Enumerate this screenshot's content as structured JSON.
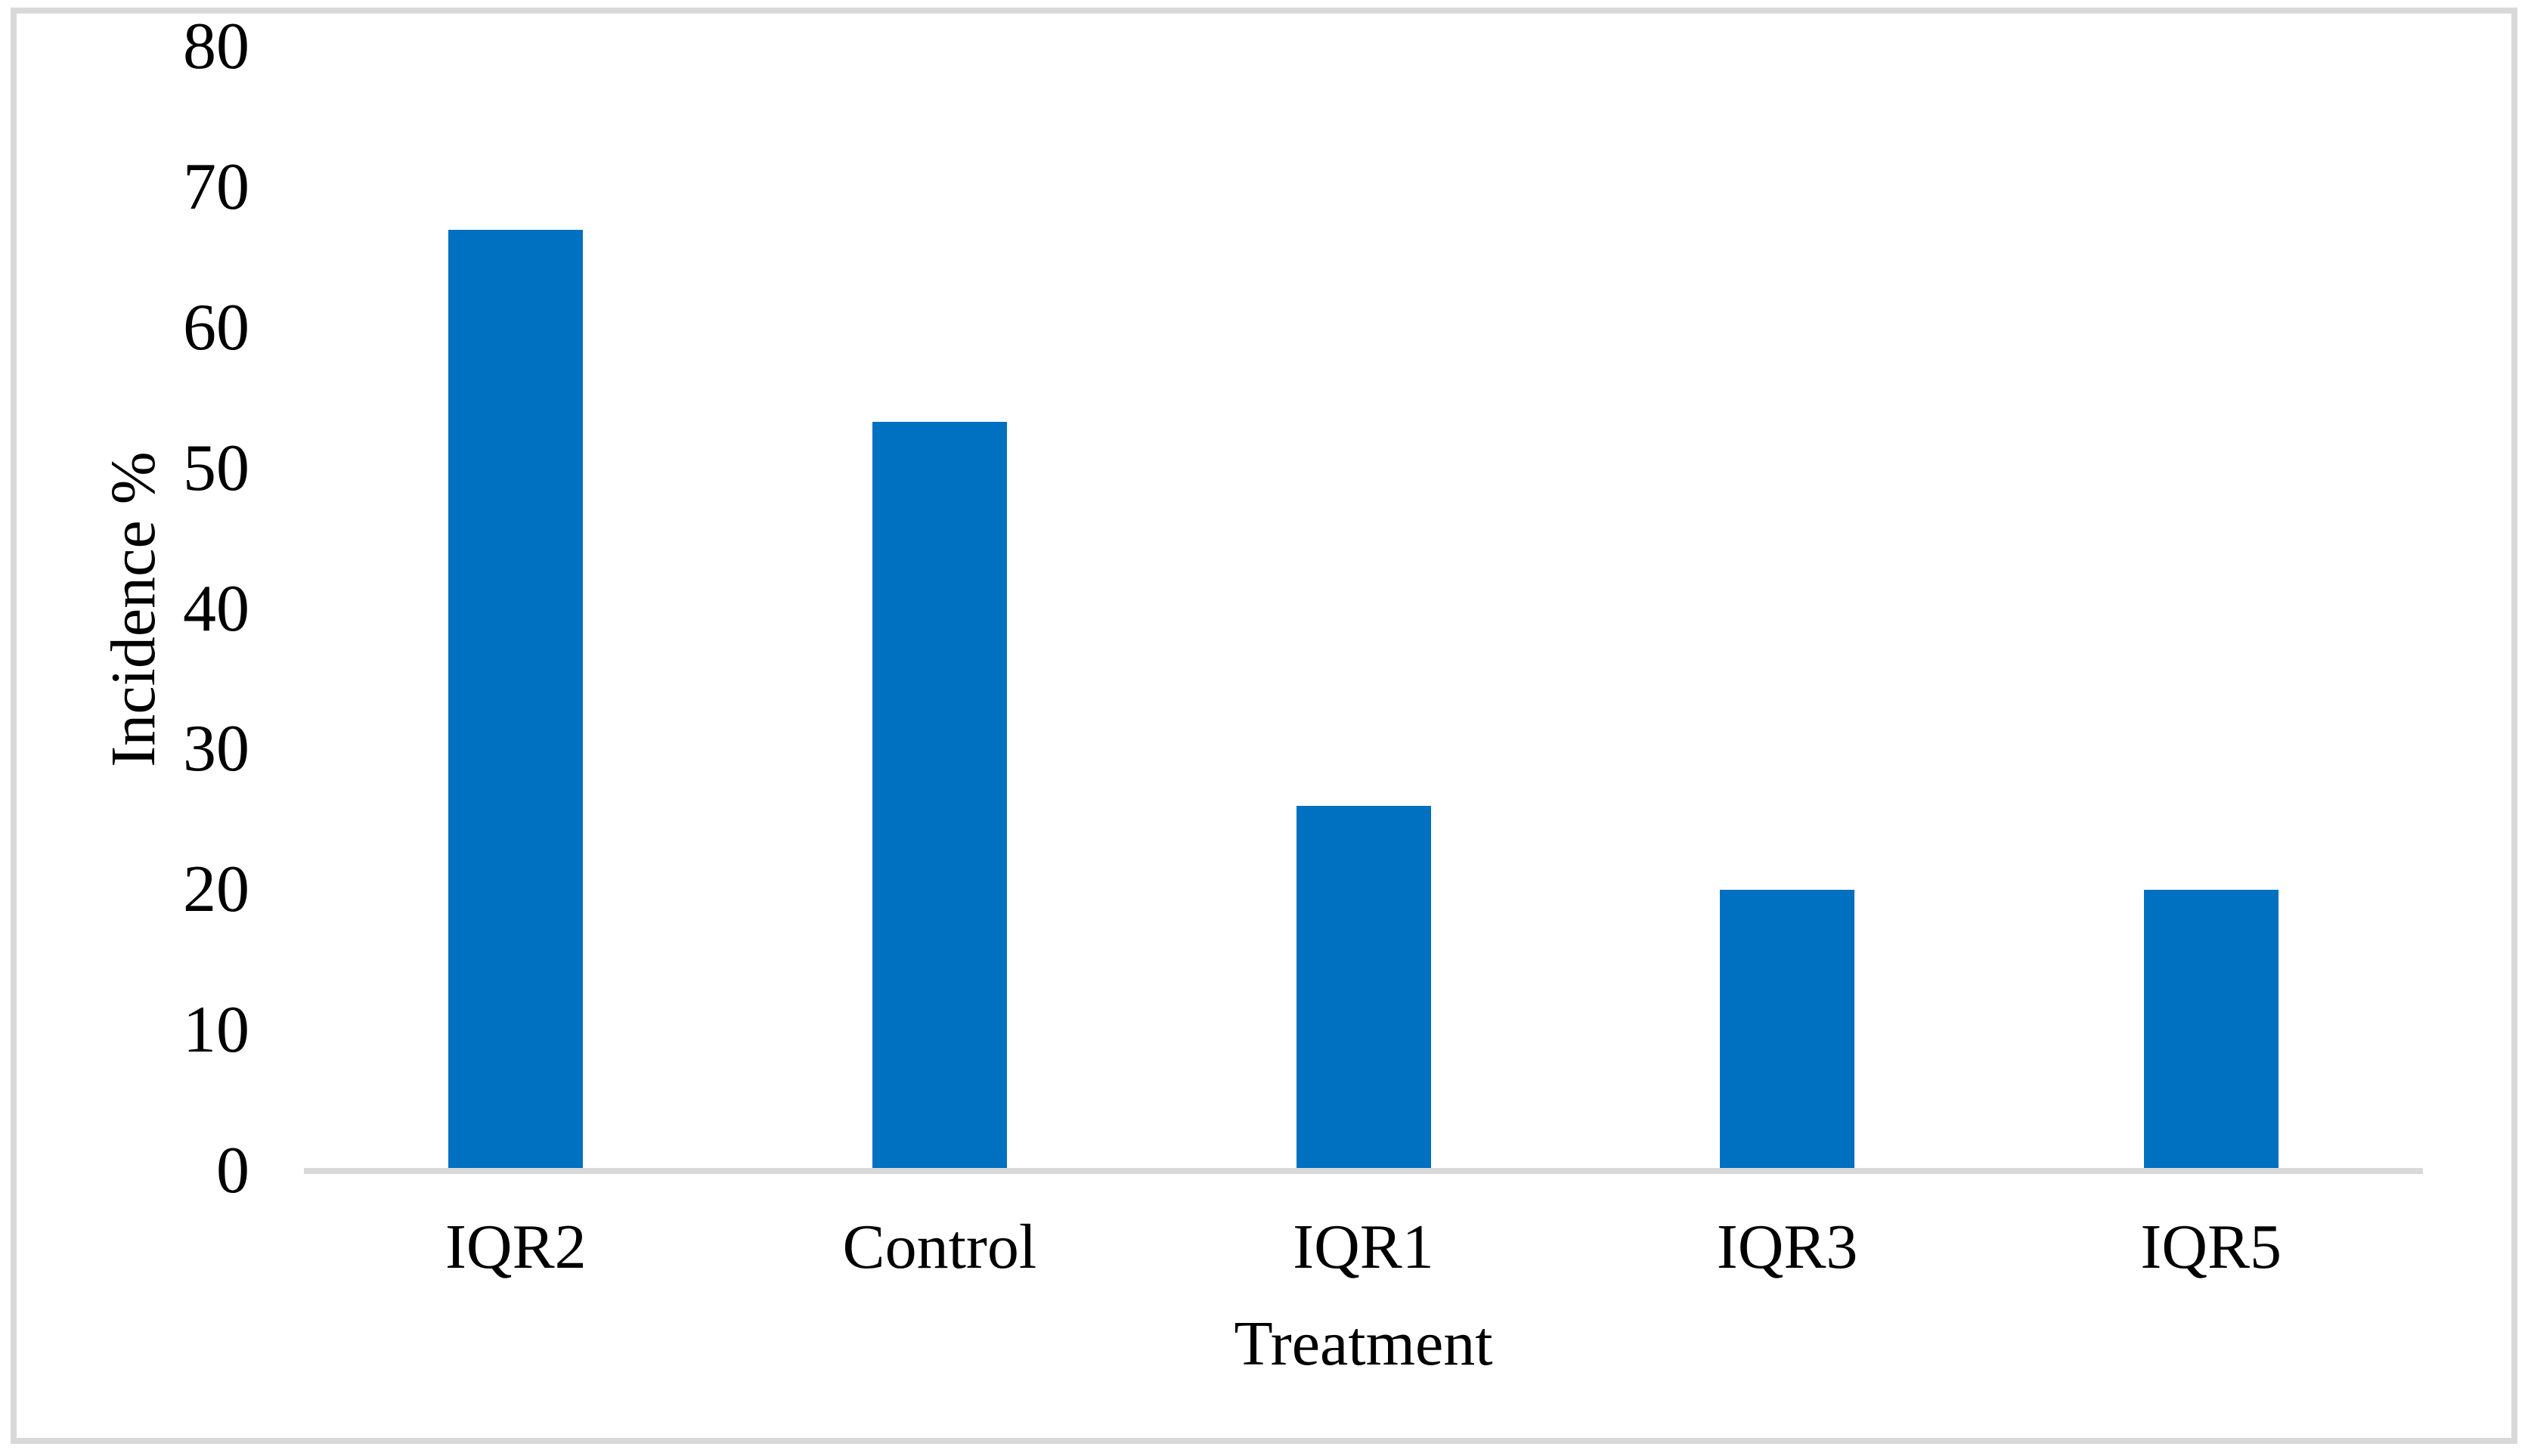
{
  "chart_data": {
    "type": "bar",
    "title": "",
    "categories": [
      "IQR2",
      "Control",
      "IQR1",
      "IQR3",
      "IQR5"
    ],
    "values": [
      67,
      53.3,
      26,
      20,
      20
    ],
    "xlabel": "Treatment",
    "ylabel": "Incidence %",
    "ylim": [
      0,
      80
    ],
    "yticks": [
      0,
      10,
      20,
      30,
      40,
      50,
      60,
      70,
      80
    ],
    "grid": "off",
    "legend": "none",
    "bar_color": "#0070c0",
    "axis_line_color": "#d9d9d9",
    "figure_border_color": "#d9d9d9",
    "text_color": "#000000"
  }
}
